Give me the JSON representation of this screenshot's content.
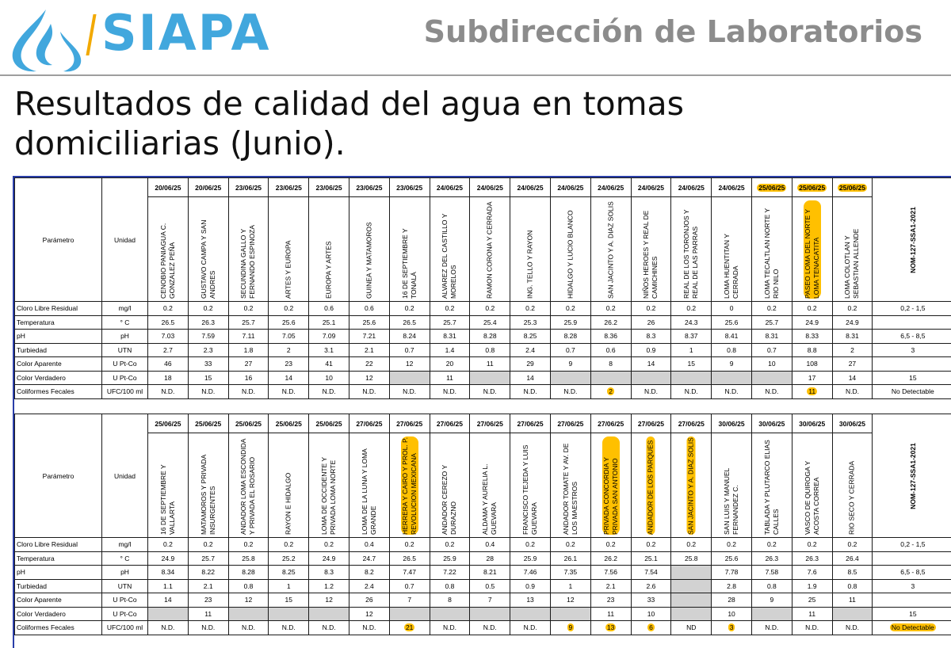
{
  "header": {
    "brand": "SIAPA",
    "subtitle": "Subdirección de Laboratorios",
    "brand_color": "#41a7dd",
    "accent_color": "#f2a900",
    "logo_icon": "water-drop-icon"
  },
  "document": {
    "title": "Resultados de calidad del agua en tomas domiciliarias (Junio)."
  },
  "table1": {
    "param_header": "Parámetro",
    "unit_header": "Unidad",
    "nom_header": "NOM-127-SSA1-2021",
    "columns": [
      {
        "date": "20/06/25",
        "location": "CENOBIO PANIAGUA C. GONZALEZ PEÑA"
      },
      {
        "date": "20/06/25",
        "location": "GUSTAVO CAMPA Y SAN ANDRES"
      },
      {
        "date": "23/06/25",
        "location": "SECUNDINA GALLO Y FERNANDO ESPINOZA"
      },
      {
        "date": "23/06/25",
        "location": "ARTES Y EUROPA"
      },
      {
        "date": "23/06/25",
        "location": "EUROPA Y ARTES"
      },
      {
        "date": "23/06/25",
        "location": "GUINEA Y MATAMOROS"
      },
      {
        "date": "23/06/25",
        "location": "16 DE SEPTIEMBRE Y TONALÁ"
      },
      {
        "date": "24/06/25",
        "location": "ALVAREZ DEL CASTILLO Y MORELOS"
      },
      {
        "date": "24/06/25",
        "location": "RAMON CORONA Y CERRADA"
      },
      {
        "date": "24/06/25",
        "location": "ING. TELLO Y RAYON"
      },
      {
        "date": "24/06/25",
        "location": "HIDALGO Y LUCIO BLANCO"
      },
      {
        "date": "24/06/25",
        "location": "SAN JACINTO Y A. DIAZ SOLIS"
      },
      {
        "date": "24/06/25",
        "location": "NIÑOS HEROES Y REAL DE CAMICHINES"
      },
      {
        "date": "24/06/25",
        "location": "REAL DE LOS TORONJOS Y REAL DE LAS PARRAS"
      },
      {
        "date": "24/06/25",
        "location": "LOMA HUENTITAN Y CERRADA"
      },
      {
        "date": "25/06/25",
        "location": "LOMA TECALTLAN NORTE Y RIO NILO"
      },
      {
        "date": "25/06/25",
        "location": "PASEO LOMA DEL NORTE Y LOMA TENACATITA"
      },
      {
        "date": "25/06/25",
        "location": "LOMA COLOTLAN Y SEBASTIAN ALLENDE"
      }
    ],
    "rows": [
      {
        "param": "Cloro Libre Residual",
        "unit": "mg/l",
        "values": [
          "0.2",
          "0.2",
          "0.2",
          "0.2",
          "0.6",
          "0.6",
          "0.2",
          "0.2",
          "0.2",
          "0.2",
          "0.2",
          "0.2",
          "0.2",
          "0.2",
          "0",
          "0.2",
          "0.2",
          "0.2"
        ],
        "nom": "0,2 - 1,5"
      },
      {
        "param": "Temperatura",
        "unit": "° C",
        "values": [
          "26.5",
          "26.3",
          "25.7",
          "25.6",
          "25.1",
          "25.6",
          "26.5",
          "25.7",
          "25.4",
          "25.3",
          "25.9",
          "26.2",
          "26",
          "24.3",
          "25.6",
          "25.7",
          "24.9",
          "24.9"
        ],
        "nom": ""
      },
      {
        "param": "pH",
        "unit": "pH",
        "values": [
          "7.03",
          "7.59",
          "7.11",
          "7.05",
          "7.09",
          "7.21",
          "8.24",
          "8.31",
          "8.28",
          "8.25",
          "8.28",
          "8.36",
          "8.3",
          "8.37",
          "8.41",
          "8.31",
          "8.33",
          "8.31"
        ],
        "nom": "6,5 - 8,5"
      },
      {
        "param": "Turbiedad",
        "unit": "UTN",
        "values": [
          "2.7",
          "2.3",
          "1.8",
          "2",
          "3.1",
          "2.1",
          "0.7",
          "1.4",
          "0.8",
          "2.4",
          "0.7",
          "0.6",
          "0.9",
          "1",
          "0.8",
          "0.7",
          "8.8",
          "2"
        ],
        "nom": "3"
      },
      {
        "param": "Color Aparente",
        "unit": "U Pt-Co",
        "values": [
          "46",
          "33",
          "27",
          "23",
          "41",
          "22",
          "12",
          "20",
          "11",
          "29",
          "9",
          "8",
          "14",
          "15",
          "9",
          "10",
          "108",
          "27"
        ],
        "nom": ""
      },
      {
        "param": "Color Verdadero",
        "unit": "U Pt-Co",
        "values": [
          "18",
          "15",
          "16",
          "14",
          "10",
          "12",
          "",
          "11",
          "",
          "14",
          "",
          "",
          "",
          "",
          "",
          "",
          "17",
          "14"
        ],
        "nom": "15"
      },
      {
        "param": "Coliformes Fecales",
        "unit": "UFC/100 ml",
        "values": [
          "N.D.",
          "N.D.",
          "N.D.",
          "N.D.",
          "N.D.",
          "N.D.",
          "N.D.",
          "N.D.",
          "N.D.",
          "N.D.",
          "N.D.",
          "2",
          "N.D.",
          "N.D.",
          "N.D.",
          "N.D.",
          "11",
          "N.D."
        ],
        "nom": "No Detectable"
      }
    ]
  },
  "table2": {
    "param_header": "Parámetro",
    "unit_header": "Unidad",
    "nom_header": "NOM-127-SSA1-2021",
    "columns": [
      {
        "date": "25/06/25",
        "location": "16 DE SEPTIEMBRE Y VALLARTA"
      },
      {
        "date": "25/06/25",
        "location": "MATAMOROS Y PRIVADA INSURGENTES"
      },
      {
        "date": "25/06/25",
        "location": "ANDADOR LOMA ESCONDIDA Y PRIVADA EL ROSARIO"
      },
      {
        "date": "25/06/25",
        "location": "RAYON E HIDALGO"
      },
      {
        "date": "25/06/25",
        "location": "LOMA DE OCCIDENTE Y PRIVADA LOMA NORTE"
      },
      {
        "date": "27/06/25",
        "location": "LOMA DE LA LUNA Y LOMA GRANDE"
      },
      {
        "date": "27/06/25",
        "location": "HERRERA Y CAIRO Y PROL. P. REVOLUCION MEXICANA"
      },
      {
        "date": "27/06/25",
        "location": "ANDADOR CEREZO Y DURAZNO"
      },
      {
        "date": "27/06/25",
        "location": "ALDAMA Y AURELIA L. GUEVARA"
      },
      {
        "date": "27/06/25",
        "location": "FRANCISCO TEJEDA Y LUIS GUEVARA"
      },
      {
        "date": "27/06/25",
        "location": "ANDADOR TOMATE Y AV. DE LOS MAESTROS"
      },
      {
        "date": "27/06/25",
        "location": "PRIVADA CONCORDIA Y PRIVADA SAN ANTONIO"
      },
      {
        "date": "27/06/25",
        "location": "ANDADOR DE LOS PARQUES"
      },
      {
        "date": "27/06/25",
        "location": "SAN JACINTO Y A. DIAZ SOLIS"
      },
      {
        "date": "30/06/25",
        "location": "SAN LUIS Y MANUEL FERNANDEZ C."
      },
      {
        "date": "30/06/25",
        "location": "TABLADA Y PLUTARCO ELIAS CALLES"
      },
      {
        "date": "30/06/25",
        "location": "VASCO DE QUIROGA Y ACOSTA CORREA"
      },
      {
        "date": "30/06/25",
        "location": "RIO SECO Y CERRADA"
      }
    ],
    "rows": [
      {
        "param": "Cloro Libre Residual",
        "unit": "mg/l",
        "values": [
          "0.2",
          "0.2",
          "0.2",
          "0.2",
          "0.2",
          "0.4",
          "0.2",
          "0.2",
          "0.4",
          "0.2",
          "0.2",
          "0.2",
          "0.2",
          "0.2",
          "0.2",
          "0.2",
          "0.2",
          "0.2"
        ],
        "nom": "0,2 - 1,5"
      },
      {
        "param": "Temperatura",
        "unit": "° C",
        "values": [
          "24.9",
          "25.7",
          "25.8",
          "25.2",
          "24.9",
          "24.7",
          "26.5",
          "25.9",
          "28",
          "25.9",
          "26.1",
          "26.2",
          "25.1",
          "25.8",
          "25.6",
          "26.3",
          "26.3",
          "26.4"
        ],
        "nom": ""
      },
      {
        "param": "pH",
        "unit": "pH",
        "values": [
          "8.34",
          "8.22",
          "8.28",
          "8.25",
          "8.3",
          "8.2",
          "7.47",
          "7.22",
          "8.21",
          "7.46",
          "7.35",
          "7.56",
          "7.54",
          "",
          "7.78",
          "7.58",
          "7.6",
          "8.5"
        ],
        "nom": "6,5 - 8,5"
      },
      {
        "param": "Turbiedad",
        "unit": "UTN",
        "values": [
          "1.1",
          "2.1",
          "0.8",
          "1",
          "1.2",
          "2.4",
          "0.7",
          "0.8",
          "0.5",
          "0.9",
          "1",
          "2.1",
          "2.6",
          "",
          "2.8",
          "0.8",
          "1.9",
          "0.8"
        ],
        "nom": "3"
      },
      {
        "param": "Color Aparente",
        "unit": "U Pt-Co",
        "values": [
          "14",
          "23",
          "12",
          "15",
          "12",
          "26",
          "7",
          "8",
          "7",
          "13",
          "12",
          "23",
          "33",
          "",
          "28",
          "9",
          "25",
          "11"
        ],
        "nom": ""
      },
      {
        "param": "Color Verdadero",
        "unit": "U Pt-Co",
        "values": [
          "",
          "11",
          "",
          "",
          "",
          "12",
          "",
          "",
          "",
          "",
          "",
          "11",
          "10",
          "",
          "10",
          "",
          "11",
          ""
        ],
        "nom": "15"
      },
      {
        "param": "Coliformes Fecales",
        "unit": "UFC/100 ml",
        "values": [
          "N.D.",
          "N.D.",
          "N.D.",
          "N.D.",
          "N.D.",
          "N.D.",
          "21",
          "N.D.",
          "N.D.",
          "N.D.",
          "9",
          "13",
          "6",
          "ND",
          "3",
          "N.D.",
          "N.D.",
          "N.D."
        ],
        "nom": "No Detectable"
      }
    ]
  }
}
